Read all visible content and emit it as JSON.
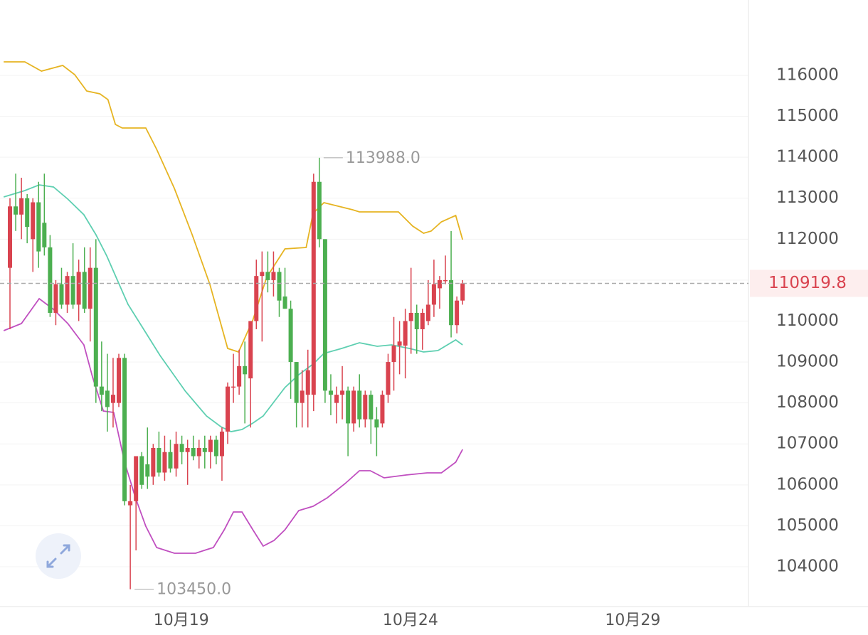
{
  "chart_data": {
    "type": "candlestick",
    "categories": [
      null,
      null,
      null,
      null,
      null,
      null,
      null,
      null,
      null,
      null,
      null,
      null,
      null,
      null,
      null,
      null,
      null,
      null,
      null,
      null,
      null,
      null,
      null,
      null,
      null,
      null,
      null,
      null,
      null,
      null,
      null,
      null,
      null,
      null,
      null,
      null,
      null,
      null,
      null,
      null,
      null,
      null,
      null,
      null,
      null,
      null,
      null,
      null,
      null,
      null,
      null,
      null,
      null,
      null,
      null,
      null,
      null,
      null,
      null,
      null,
      null,
      null,
      null,
      null,
      null,
      null,
      null,
      null,
      null,
      null,
      null,
      null,
      null,
      null,
      null,
      null,
      null,
      null,
      null,
      null
    ],
    "open": [
      111300,
      112800,
      112600,
      113000,
      112000,
      112900,
      112400,
      111800,
      110200,
      110900,
      110400,
      111100,
      110400,
      111200,
      110300,
      111300,
      108400,
      108300,
      108000,
      108000,
      109100,
      105500,
      105600,
      106700,
      106500,
      106200,
      106900,
      106300,
      106800,
      106400,
      107000,
      106800,
      106900,
      106700,
      106900,
      106800,
      107100,
      106700,
      107300,
      108400,
      108400,
      108900,
      108600,
      110000,
      111100,
      111200,
      111000,
      111200,
      110600,
      110300,
      109000,
      108000,
      108200,
      108200,
      113400,
      112000,
      108300,
      108000,
      108200,
      108300,
      107500,
      108300,
      107600,
      108200,
      107600,
      107500,
      108200,
      109000,
      109400,
      109400,
      110000,
      110200,
      109800,
      110000,
      110400,
      110800,
      111000,
      111000,
      109900,
      110500
    ],
    "high": [
      113000,
      113600,
      113500,
      113100,
      113000,
      113400,
      113600,
      112100,
      111000,
      111300,
      111200,
      111900,
      111500,
      111800,
      111800,
      112000,
      109500,
      109200,
      109100,
      109200,
      109200,
      106000,
      106700,
      106800,
      107400,
      107000,
      107300,
      107200,
      107100,
      107300,
      107200,
      107100,
      107200,
      107100,
      107200,
      107200,
      107200,
      107400,
      108500,
      109200,
      109300,
      109500,
      110000,
      111500,
      111700,
      111700,
      111700,
      111300,
      111300,
      110500,
      109000,
      108800,
      109300,
      113600,
      113988,
      112000,
      108700,
      108400,
      108900,
      108400,
      108400,
      108700,
      108300,
      108300,
      107900,
      108300,
      109200,
      110100,
      110000,
      110300,
      111300,
      110400,
      110300,
      111000,
      111500,
      111100,
      111600,
      112200,
      110600,
      111000
    ],
    "low": [
      109800,
      112200,
      112000,
      111900,
      111200,
      111300,
      111600,
      110100,
      109900,
      110300,
      110200,
      110300,
      110000,
      110200,
      109500,
      108000,
      107800,
      107300,
      107400,
      107900,
      105500,
      103450,
      104400,
      105900,
      105900,
      106000,
      106200,
      106100,
      106300,
      106200,
      106500,
      106000,
      106600,
      106400,
      106400,
      106400,
      106500,
      106100,
      107000,
      108000,
      108200,
      107500,
      107400,
      109800,
      109500,
      110700,
      110600,
      110100,
      110300,
      108100,
      107400,
      107400,
      107400,
      107800,
      111800,
      108000,
      107700,
      107500,
      107600,
      106700,
      107300,
      107400,
      107400,
      107000,
      106700,
      107400,
      108000,
      108300,
      108700,
      108600,
      109200,
      109200,
      109300,
      109900,
      110100,
      110300,
      110900,
      109600,
      109700,
      110400
    ],
    "close": [
      112800,
      112600,
      113000,
      112300,
      112900,
      111700,
      111800,
      110200,
      110900,
      110400,
      111100,
      110400,
      111200,
      110300,
      111300,
      108400,
      108200,
      107900,
      108200,
      109100,
      105600,
      105600,
      106700,
      106000,
      106200,
      106900,
      106300,
      106800,
      106400,
      107000,
      106800,
      106900,
      106700,
      106900,
      106800,
      107100,
      106700,
      107300,
      108400,
      108400,
      108900,
      108700,
      110000,
      111100,
      111200,
      111000,
      111200,
      110500,
      110300,
      109000,
      108000,
      108300,
      108800,
      113400,
      112000,
      108300,
      108200,
      108200,
      108300,
      107500,
      108300,
      107600,
      108200,
      107600,
      107400,
      108200,
      109000,
      109400,
      109500,
      110000,
      110200,
      109800,
      110200,
      110400,
      110900,
      111000,
      111000,
      109900,
      110500,
      110919.8
    ],
    "up_color": "#d9434f",
    "down_color": "#4caf50",
    "bands": [
      {
        "color": "#e6b422",
        "x": [
          -1.1,
          2.6,
          5.5,
          9.2,
          11.3,
          13.4,
          15.7,
          17.1,
          18.4,
          19.6,
          23.7,
          25.6,
          28.7,
          31.8,
          34.9,
          38.0,
          39.9,
          42.4,
          44.8,
          48.0,
          51.7,
          52.9,
          54.8,
          59.8,
          61.0,
          64.1,
          67.8,
          70.3,
          72.2,
          73.5,
          75.3,
          77.8,
          79.0
        ],
        "values": [
          116330,
          116330,
          116104,
          116243,
          116017,
          115618,
          115548,
          115410,
          114802,
          114715,
          114715,
          114194,
          113239,
          112110,
          110894,
          109331,
          109244,
          110026,
          111068,
          111762,
          111797,
          112631,
          112891,
          112718,
          112666,
          112666,
          112666,
          112318,
          112145,
          112197,
          112422,
          112579,
          111988
        ]
      },
      {
        "color": "#5ecfb1",
        "x": [
          -1.1,
          2.6,
          5.1,
          7.6,
          10.1,
          12.9,
          15.0,
          16.9,
          18.8,
          20.6,
          23.1,
          26.2,
          30.6,
          34.3,
          36.8,
          38.6,
          40.5,
          42.4,
          44.2,
          46.1,
          48.0,
          50.4,
          52.9,
          54.8,
          57.9,
          61.0,
          64.1,
          66.6,
          69.7,
          72.2,
          74.7,
          77.8,
          79.0
        ],
        "values": [
          113030,
          113187,
          113326,
          113273,
          112978,
          112596,
          112110,
          111589,
          110981,
          110408,
          109852,
          109157,
          108289,
          107681,
          107421,
          107299,
          107351,
          107507,
          107681,
          108028,
          108376,
          108688,
          108949,
          109209,
          109331,
          109470,
          109383,
          109418,
          109331,
          109244,
          109279,
          109539,
          109418
        ]
      },
      {
        "color": "#c04fc0",
        "x": [
          -1.1,
          2.0,
          5.1,
          7.6,
          10.1,
          12.9,
          14.4,
          16.3,
          18.1,
          20.0,
          21.9,
          23.7,
          25.6,
          28.7,
          32.4,
          34.3,
          35.5,
          37.4,
          39.0,
          40.5,
          42.4,
          44.2,
          46.1,
          48.0,
          50.4,
          52.9,
          55.4,
          58.5,
          61.0,
          62.9,
          65.3,
          69.1,
          72.8,
          75.3,
          77.8,
          79.0
        ],
        "values": [
          109765,
          109939,
          110547,
          110286,
          109939,
          109418,
          108636,
          107803,
          107768,
          106552,
          105684,
          104989,
          104468,
          104329,
          104329,
          104416,
          104468,
          104902,
          105336,
          105336,
          104902,
          104503,
          104642,
          104902,
          105371,
          105475,
          105684,
          106031,
          106344,
          106344,
          106170,
          106240,
          106292,
          106292,
          106552,
          106865
        ]
      }
    ],
    "max_label": {
      "value": 113988,
      "label": "113988.0"
    },
    "min_label": {
      "value": 103450,
      "label": "103450.0"
    },
    "last_price": {
      "value": 110919.8,
      "label": "110919.8"
    },
    "xlim": [
      -1.74,
      128.9
    ],
    "xticks": [
      {
        "value": 29.9,
        "label": "10月19"
      },
      {
        "value": 69.9,
        "label": "10月24"
      },
      {
        "value": 108.7,
        "label": "10月29"
      }
    ],
    "ylim": [
      103027,
      117841
    ],
    "yticks": [
      104000,
      105000,
      106000,
      107000,
      108000,
      109000,
      110000,
      111000,
      112000,
      113000,
      114000,
      115000,
      116000
    ],
    "grid": true
  }
}
